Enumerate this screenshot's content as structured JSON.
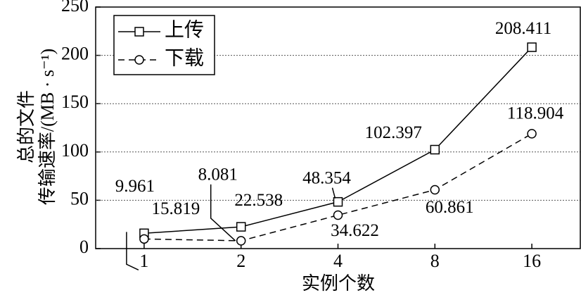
{
  "chart_data": {
    "type": "line",
    "categories": [
      "1",
      "2",
      "4",
      "8",
      "16"
    ],
    "series": [
      {
        "name": "上传",
        "color": "#000000",
        "dash": "solid",
        "marker": "square",
        "values": [
          15.819,
          22.538,
          48.354,
          102.397,
          208.411
        ]
      },
      {
        "name": "下载",
        "color": "#000000",
        "dash": "dashed",
        "marker": "circle",
        "values": [
          9.961,
          8.081,
          34.622,
          60.861,
          118.904
        ]
      }
    ],
    "ylim": [
      0,
      250
    ],
    "yticks": [
      0,
      50,
      100,
      150,
      200,
      250
    ],
    "grid": true,
    "x_label": "实例个数",
    "y_label": [
      "总的文件",
      "传输速率/(MB · s⁻¹)"
    ],
    "legend": "upper left"
  }
}
